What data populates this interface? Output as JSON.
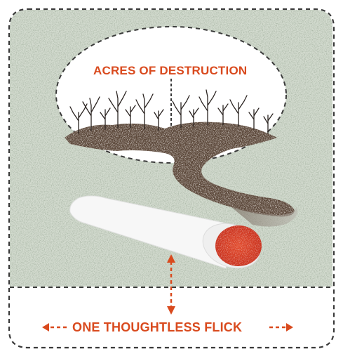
{
  "illustration": {
    "top_label": "ACRES OF DESTRUCTION",
    "bottom_label": "ONE THOUGHTLESS FLICK"
  },
  "colors": {
    "accent": "#d94a1e",
    "border": "#3a3a3a",
    "grass": "#cdd6c8",
    "soil": "#5a4638",
    "ember": "#d93a22",
    "cigarette": "#f7f7f7"
  },
  "icons": [
    "tree-silhouette-icon",
    "cigarette-icon",
    "double-arrow-icon"
  ]
}
